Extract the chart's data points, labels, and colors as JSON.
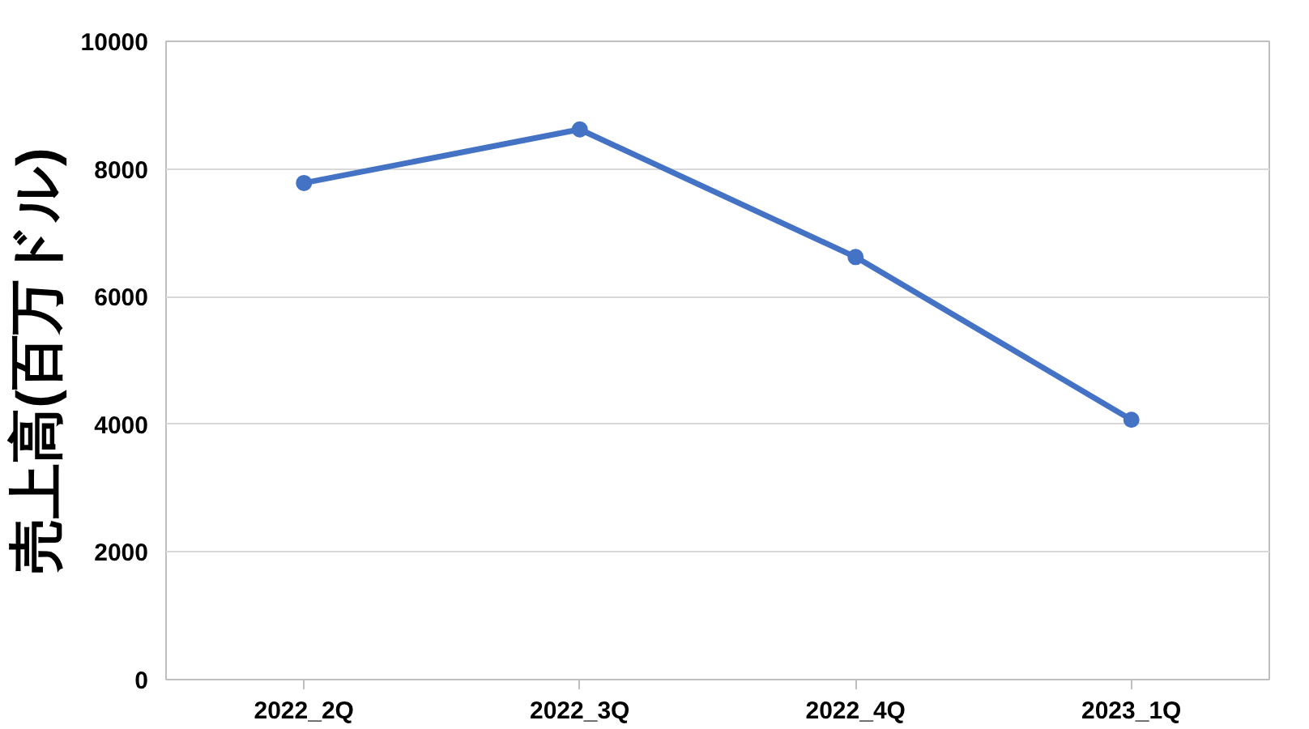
{
  "chart_data": {
    "type": "line",
    "ylabel": "売上高(百万ドル)",
    "categories": [
      "2022_2Q",
      "2022_3Q",
      "2022_4Q",
      "2023_1Q"
    ],
    "series": [
      {
        "color": "#4472c4",
        "values": [
          7780,
          8620,
          6620,
          4070
        ]
      }
    ],
    "ylim": [
      0,
      10000
    ],
    "yticks": [
      0,
      2000,
      4000,
      6000,
      8000,
      10000
    ],
    "grid": "y",
    "marker": "circle",
    "line_style": "solid"
  }
}
